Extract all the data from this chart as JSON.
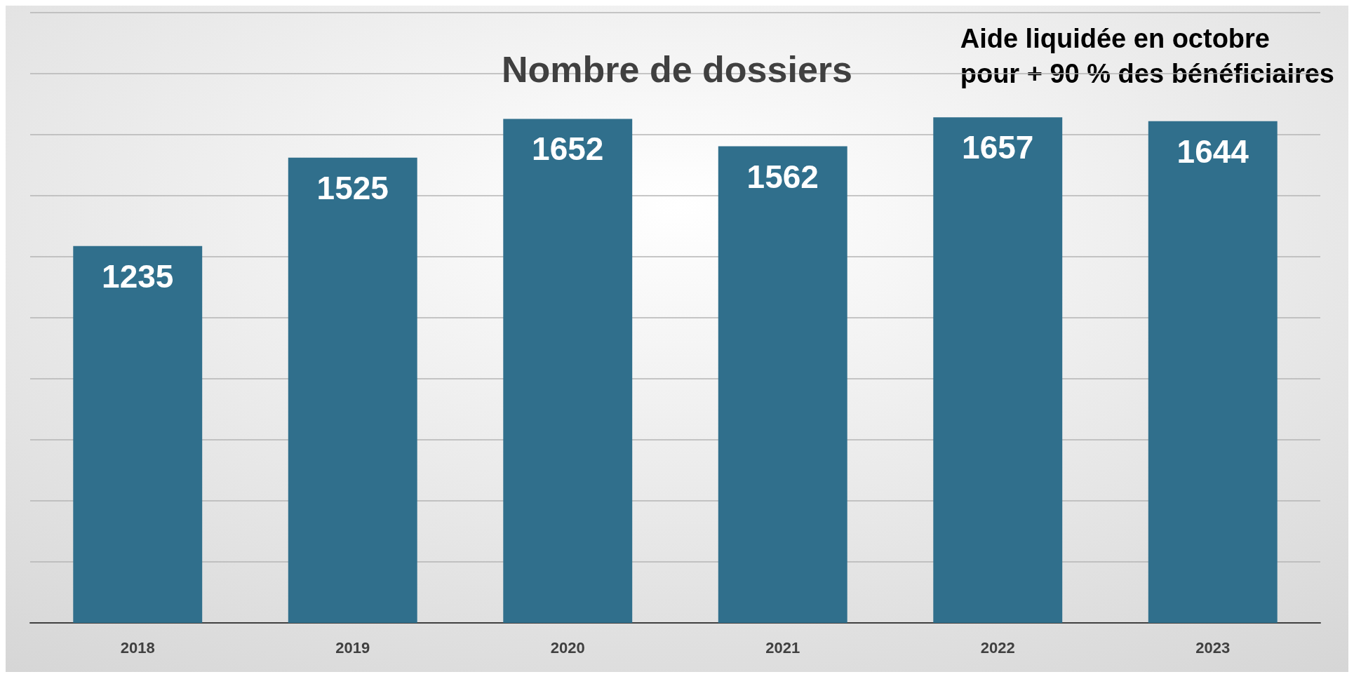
{
  "chart_data": {
    "type": "bar",
    "title": "Nombre de dossiers",
    "annotations": [
      "Aide liquidée en octobre\npour + 90 % des bénéficiaires"
    ],
    "categories": [
      "2018",
      "2019",
      "2020",
      "2021",
      "2022",
      "2023"
    ],
    "values": [
      1235,
      1525,
      1652,
      1562,
      1657,
      1644
    ],
    "color": "#306f8c",
    "ylim": [
      0,
      2000
    ],
    "yticks": [
      {
        "value": 0,
        "label": null
      },
      {
        "value": 200,
        "label": null
      },
      {
        "value": 400,
        "label": null
      },
      {
        "value": 600,
        "label": null
      },
      {
        "value": 800,
        "label": null
      },
      {
        "value": 1000,
        "label": null
      },
      {
        "value": 1200,
        "label": null
      },
      {
        "value": 1400,
        "label": null
      },
      {
        "value": 1600,
        "label": null
      },
      {
        "value": 1800,
        "label": null
      },
      {
        "value": 2000,
        "label": null
      }
    ],
    "grid": "y",
    "tick_labels": "x",
    "data_labels": true
  }
}
